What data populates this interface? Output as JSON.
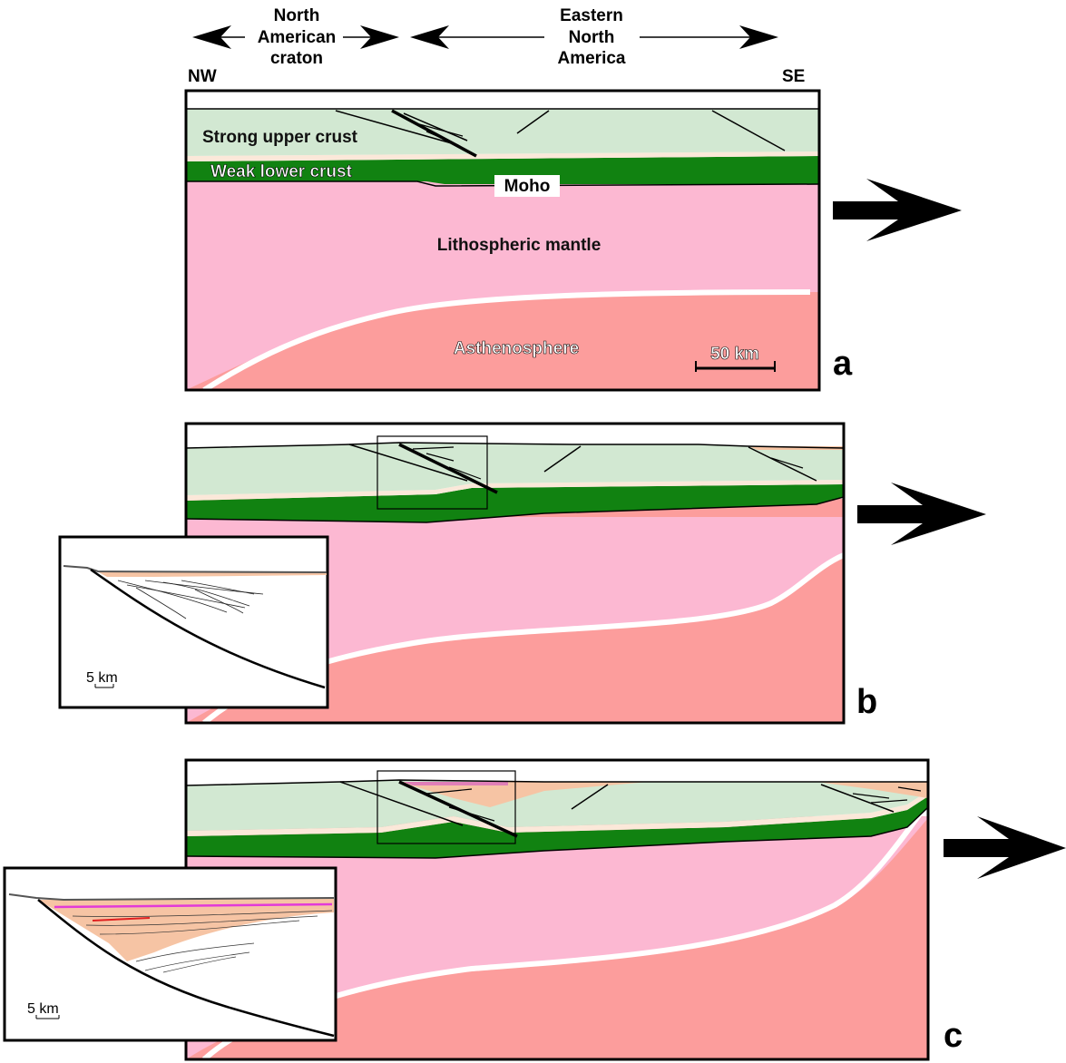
{
  "header": {
    "left_region": [
      "North",
      "American",
      "craton"
    ],
    "right_region": [
      "Eastern",
      "North",
      "America"
    ],
    "nw": "NW",
    "se": "SE"
  },
  "panel_a": {
    "label": "a",
    "upper_crust": "Strong upper crust",
    "lower_crust": "Weak lower crust",
    "moho": "Moho",
    "mantle": "Lithospheric mantle",
    "asthenosphere": "Asthenosphere",
    "scale": "50 km"
  },
  "panel_b": {
    "label": "b",
    "inset_scale": "5 km"
  },
  "panel_c": {
    "label": "c",
    "inset_scale": "5 km"
  },
  "colors": {
    "upper_crust": "#d2e8d2",
    "lower_crust": "#118211",
    "mantle": "#fcb8d2",
    "asthenosphere": "#fc9d9c",
    "sediment": "#f6c4a4",
    "boundary": "#fbe8d9",
    "magenta_layer": "#e23ad8",
    "red_marker": "#e02020"
  }
}
